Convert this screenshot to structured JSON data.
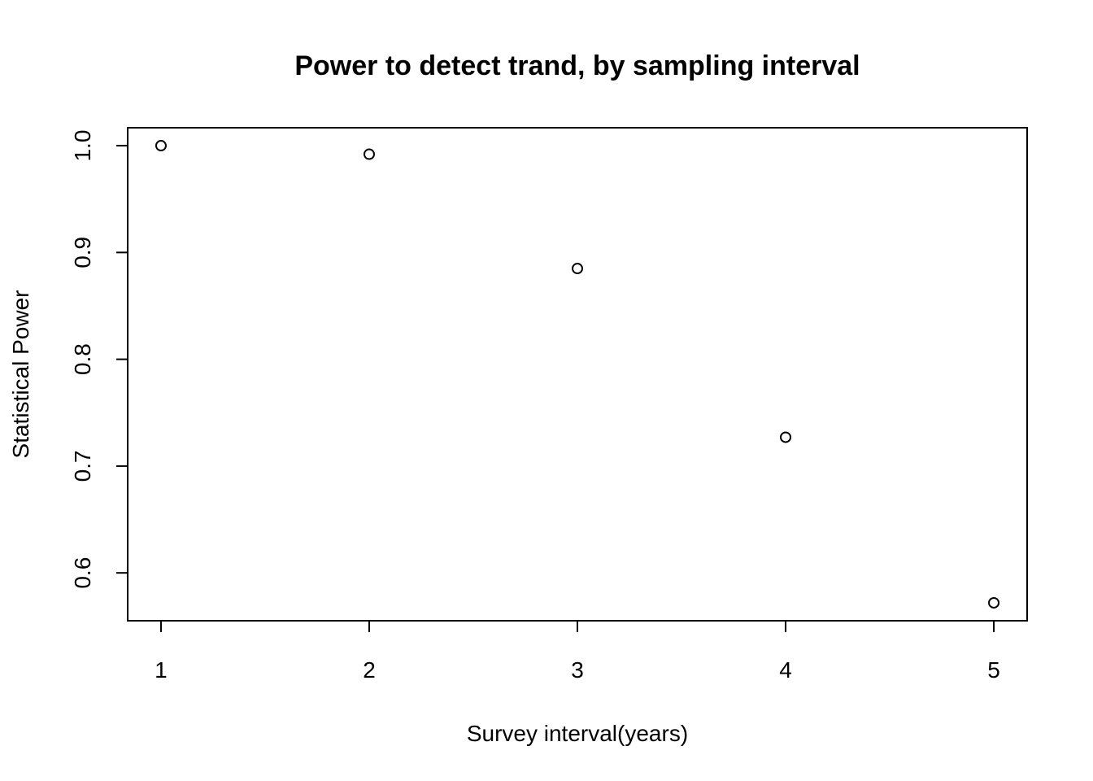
{
  "chart_data": {
    "type": "scatter",
    "title": "Power to detect trand, by sampling interval",
    "xlabel": "Survey interval(years)",
    "ylabel": "Statistical Power",
    "x": [
      1,
      2,
      3,
      4,
      5
    ],
    "y": [
      1.0,
      0.992,
      0.885,
      0.727,
      0.572
    ],
    "x_ticks": [
      "1",
      "2",
      "3",
      "4",
      "5"
    ],
    "y_ticks": [
      "0.6",
      "0.7",
      "0.8",
      "0.9",
      "1.0"
    ],
    "xlim": [
      0.84,
      5.16
    ],
    "ylim": [
      0.5552,
      1.0168
    ],
    "grid": false,
    "point_style": "open-circle",
    "colors": {
      "points": "#000000",
      "axes": "#000000",
      "background": "#ffffff"
    }
  }
}
